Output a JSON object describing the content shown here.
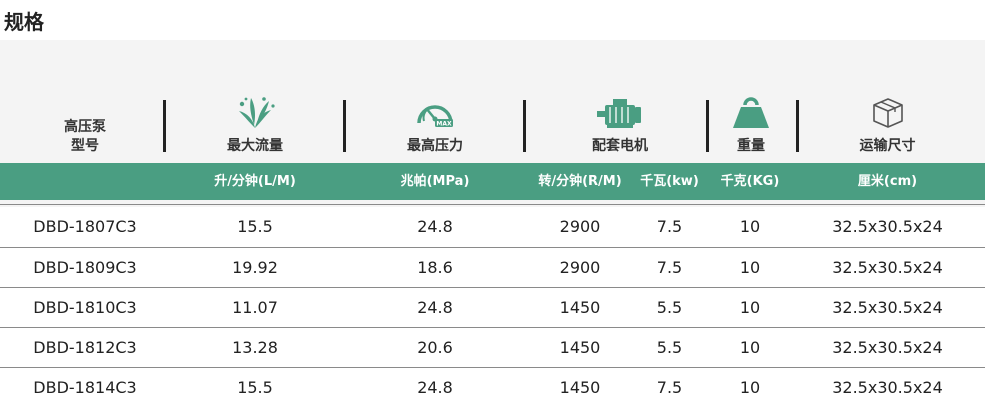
{
  "title": "规格",
  "header": {
    "model": [
      "高压泵",
      "型号"
    ],
    "flow": "最大流量",
    "pressure": "最高压力",
    "pressure_icon_text": "MAX",
    "motor": "配套电机",
    "weight": "重量",
    "size": "运输尺寸"
  },
  "units": {
    "flow": "升/分钟(L/M)",
    "pressure": "兆帕(MPa)",
    "rpm": "转/分钟(R/M)",
    "power": "千瓦(kw)",
    "weight": "千克(KG)",
    "size": "厘米(cm)"
  },
  "colors": {
    "accent": "#4a9e82",
    "icon": "#4a9e82"
  },
  "icons": [
    "leaf-splash-icon",
    "pressure-gauge-icon",
    "motor-icon",
    "weight-icon",
    "box-icon"
  ],
  "rows": [
    {
      "model": "DBD-1807C3",
      "flow": "15.5",
      "pressure": "24.8",
      "rpm": "2900",
      "power": "7.5",
      "weight": "10",
      "size": "32.5x30.5x24"
    },
    {
      "model": "DBD-1809C3",
      "flow": "19.92",
      "pressure": "18.6",
      "rpm": "2900",
      "power": "7.5",
      "weight": "10",
      "size": "32.5x30.5x24"
    },
    {
      "model": "DBD-1810C3",
      "flow": "11.07",
      "pressure": "24.8",
      "rpm": "1450",
      "power": "5.5",
      "weight": "10",
      "size": "32.5x30.5x24"
    },
    {
      "model": "DBD-1812C3",
      "flow": "13.28",
      "pressure": "20.6",
      "rpm": "1450",
      "power": "5.5",
      "weight": "10",
      "size": "32.5x30.5x24"
    },
    {
      "model": "DBD-1814C3",
      "flow": "15.5",
      "pressure": "24.8",
      "rpm": "1450",
      "power": "7.5",
      "weight": "10",
      "size": "32.5x30.5x24"
    }
  ]
}
